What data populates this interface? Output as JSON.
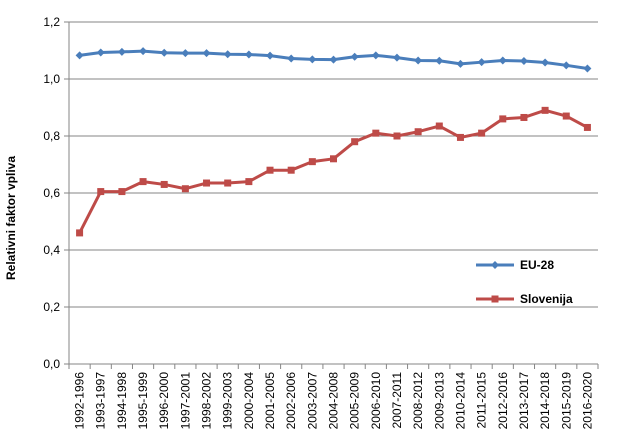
{
  "chart_data": {
    "type": "line",
    "title": "",
    "xlabel": "",
    "ylabel": "Relativni faktor vpliva",
    "ylim": [
      0,
      1.2
    ],
    "yticks": [
      "0,0",
      "0,2",
      "0,4",
      "0,6",
      "0,8",
      "1,0",
      "1,2"
    ],
    "ytick_values": [
      0,
      0.2,
      0.4,
      0.6,
      0.8,
      1.0,
      1.2
    ],
    "grid": "horizontal",
    "legend_position": "right",
    "categories": [
      "1992-1996",
      "1993-1997",
      "1994-1998",
      "1995-1999",
      "1996-2000",
      "1997-2001",
      "1998-2002",
      "1999-2003",
      "2000-2004",
      "2001-2005",
      "2002-2006",
      "2003-2007",
      "2004-2008",
      "2005-2009",
      "2006-2010",
      "2007-2011",
      "2008-2012",
      "2009-2013",
      "2010-2014",
      "2011-2015",
      "2012-2016",
      "2013-2017",
      "2014-2018",
      "2015-2019",
      "2016-2020"
    ],
    "series": [
      {
        "name": "EU-28",
        "color": "#4a7ebb",
        "marker": "diamond",
        "values": [
          1.083,
          1.093,
          1.095,
          1.098,
          1.092,
          1.091,
          1.091,
          1.087,
          1.086,
          1.082,
          1.072,
          1.069,
          1.068,
          1.078,
          1.083,
          1.075,
          1.065,
          1.064,
          1.053,
          1.059,
          1.065,
          1.063,
          1.058,
          1.048,
          1.037
        ]
      },
      {
        "name": "Slovenija",
        "color": "#be4b48",
        "marker": "square",
        "values": [
          0.46,
          0.605,
          0.605,
          0.64,
          0.63,
          0.615,
          0.635,
          0.635,
          0.64,
          0.68,
          0.68,
          0.71,
          0.72,
          0.78,
          0.81,
          0.8,
          0.815,
          0.835,
          0.795,
          0.81,
          0.86,
          0.865,
          0.89,
          0.87,
          0.83
        ]
      }
    ]
  }
}
